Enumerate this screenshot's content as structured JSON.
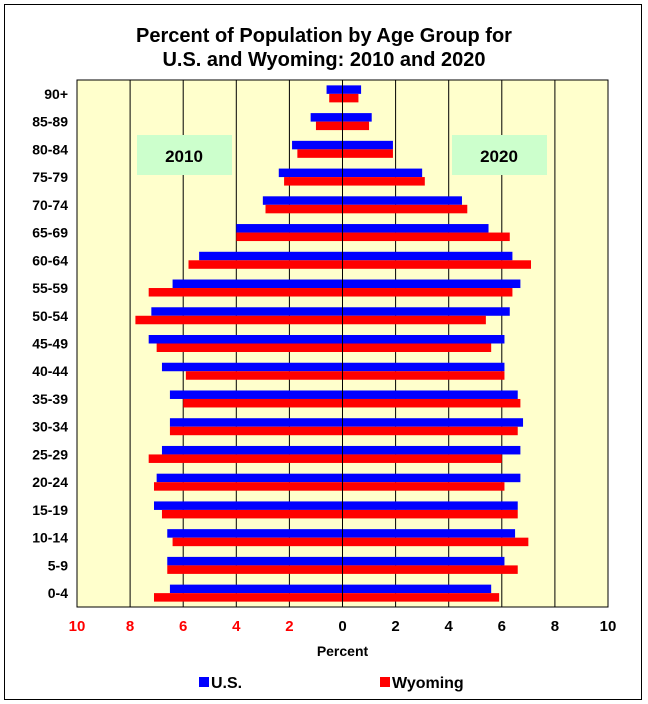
{
  "chart_data": {
    "type": "bar",
    "orientation": "horizontal",
    "title": "Percent of Population by Age Group for\nU.S. and Wyoming: 2010 and 2020",
    "xlabel": "Percent",
    "xlim": [
      -10,
      10
    ],
    "x_ticks": [
      -10,
      -8,
      -6,
      -4,
      -2,
      0,
      2,
      4,
      6,
      8,
      10
    ],
    "x_tick_labels": [
      "10",
      "8",
      "6",
      "4",
      "2",
      "0",
      "2",
      "4",
      "6",
      "8",
      "10"
    ],
    "grid": true,
    "legend_position": "bottom",
    "panel_labels": {
      "left": "2010",
      "right": "2020"
    },
    "categories": [
      "0-4",
      "5-9",
      "10-14",
      "15-19",
      "20-24",
      "25-29",
      "30-34",
      "35-39",
      "40-44",
      "45-49",
      "50-54",
      "55-59",
      "60-64",
      "65-69",
      "70-74",
      "75-79",
      "80-84",
      "85-89",
      "90+"
    ],
    "series": [
      {
        "name": "U.S.",
        "year": "2010",
        "color": "#0000ff",
        "values": [
          6.5,
          6.6,
          6.6,
          7.1,
          7.0,
          6.8,
          6.5,
          6.5,
          6.8,
          7.3,
          7.2,
          6.4,
          5.4,
          4.0,
          3.0,
          2.4,
          1.9,
          1.2,
          0.6
        ]
      },
      {
        "name": "Wyoming",
        "year": "2010",
        "color": "#ff0000",
        "values": [
          7.1,
          6.6,
          6.4,
          6.8,
          7.1,
          7.3,
          6.5,
          6.0,
          5.9,
          7.0,
          7.8,
          7.3,
          5.8,
          4.0,
          2.9,
          2.2,
          1.7,
          1.0,
          0.5
        ]
      },
      {
        "name": "U.S.",
        "year": "2020",
        "color": "#0000ff",
        "values": [
          5.6,
          6.1,
          6.5,
          6.6,
          6.7,
          6.7,
          6.8,
          6.6,
          6.1,
          6.1,
          6.3,
          6.7,
          6.4,
          5.5,
          4.5,
          3.0,
          1.9,
          1.1,
          0.7
        ]
      },
      {
        "name": "Wyoming",
        "year": "2020",
        "color": "#ff0000",
        "values": [
          5.9,
          6.6,
          7.0,
          6.6,
          6.1,
          6.0,
          6.6,
          6.7,
          6.1,
          5.6,
          5.4,
          6.4,
          7.1,
          6.3,
          4.7,
          3.1,
          1.9,
          1.0,
          0.6
        ]
      }
    ],
    "legend": [
      {
        "name": "U.S.",
        "color": "#0000ff"
      },
      {
        "name": "Wyoming",
        "color": "#ff0000"
      }
    ],
    "colors": {
      "plot_background": "#ffffcc",
      "label_box": "#ccffcc",
      "left_tick_labels": "#ff0000",
      "right_tick_labels": "#000000",
      "gridline": "#000000"
    }
  }
}
